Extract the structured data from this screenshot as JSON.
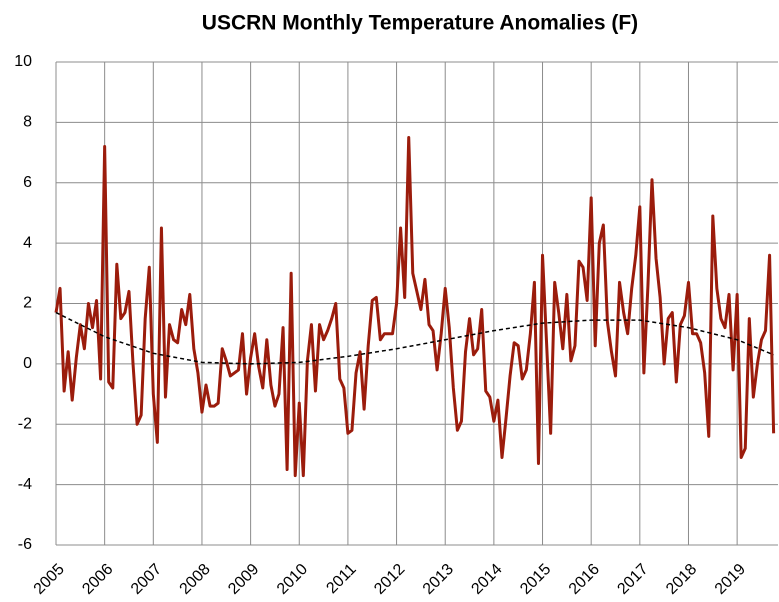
{
  "chart_data": {
    "type": "line",
    "title": "USCRN Monthly Temperature Anomalies (F)",
    "xlim": [
      2005,
      2019.84
    ],
    "xticks": [
      2005,
      2006,
      2007,
      2008,
      2009,
      2010,
      2011,
      2012,
      2013,
      2014,
      2015,
      2016,
      2017,
      2018,
      2019
    ],
    "ylim": [
      -6,
      10
    ],
    "yticks": [
      -6,
      -4,
      -2,
      0,
      2,
      4,
      6,
      8,
      10
    ],
    "grid": true,
    "series": [
      {
        "color": "#9b1c0c",
        "dash": false,
        "x": [
          2005,
          2005.083,
          2005.167,
          2005.25,
          2005.333,
          2005.417,
          2005.5,
          2005.583,
          2005.667,
          2005.75,
          2005.833,
          2005.917,
          2006,
          2006.083,
          2006.167,
          2006.25,
          2006.333,
          2006.417,
          2006.5,
          2006.583,
          2006.667,
          2006.75,
          2006.833,
          2006.917,
          2007,
          2007.083,
          2007.167,
          2007.25,
          2007.333,
          2007.417,
          2007.5,
          2007.583,
          2007.667,
          2007.75,
          2007.833,
          2007.917,
          2008,
          2008.083,
          2008.167,
          2008.25,
          2008.333,
          2008.417,
          2008.5,
          2008.583,
          2008.667,
          2008.75,
          2008.833,
          2008.917,
          2009,
          2009.083,
          2009.167,
          2009.25,
          2009.333,
          2009.417,
          2009.5,
          2009.583,
          2009.667,
          2009.75,
          2009.833,
          2009.917,
          2010,
          2010.083,
          2010.167,
          2010.25,
          2010.333,
          2010.417,
          2010.5,
          2010.583,
          2010.667,
          2010.75,
          2010.833,
          2010.917,
          2011,
          2011.083,
          2011.167,
          2011.25,
          2011.333,
          2011.417,
          2011.5,
          2011.583,
          2011.667,
          2011.75,
          2011.833,
          2011.917,
          2012,
          2012.083,
          2012.167,
          2012.25,
          2012.333,
          2012.417,
          2012.5,
          2012.583,
          2012.667,
          2012.75,
          2012.833,
          2012.917,
          2013,
          2013.083,
          2013.167,
          2013.25,
          2013.333,
          2013.417,
          2013.5,
          2013.583,
          2013.667,
          2013.75,
          2013.833,
          2013.917,
          2014,
          2014.083,
          2014.167,
          2014.25,
          2014.333,
          2014.417,
          2014.5,
          2014.583,
          2014.667,
          2014.75,
          2014.833,
          2014.917,
          2015,
          2015.083,
          2015.167,
          2015.25,
          2015.333,
          2015.417,
          2015.5,
          2015.583,
          2015.667,
          2015.75,
          2015.833,
          2015.917,
          2016,
          2016.083,
          2016.167,
          2016.25,
          2016.333,
          2016.417,
          2016.5,
          2016.583,
          2016.667,
          2016.75,
          2016.833,
          2016.917,
          2017,
          2017.083,
          2017.167,
          2017.25,
          2017.333,
          2017.417,
          2017.5,
          2017.583,
          2017.667,
          2017.75,
          2017.833,
          2017.917,
          2018,
          2018.083,
          2018.167,
          2018.25,
          2018.333,
          2018.417,
          2018.5,
          2018.583,
          2018.667,
          2018.75,
          2018.833,
          2018.917,
          2019,
          2019.083,
          2019.167,
          2019.25,
          2019.333,
          2019.417,
          2019.5,
          2019.583,
          2019.667,
          2019.75
        ],
        "values": [
          1.7,
          2.5,
          -0.9,
          0.4,
          -1.2,
          0.2,
          1.3,
          0.5,
          2.0,
          1.2,
          2.1,
          -0.5,
          7.2,
          -0.6,
          -0.8,
          3.3,
          1.5,
          1.7,
          2.4,
          0.0,
          -2.0,
          -1.7,
          1.5,
          3.2,
          -1.0,
          -2.6,
          4.5,
          -1.1,
          1.3,
          0.8,
          0.7,
          1.8,
          1.3,
          2.3,
          0.5,
          -0.3,
          -1.6,
          -0.7,
          -1.4,
          -1.4,
          -1.3,
          0.5,
          0.1,
          -0.4,
          -0.3,
          -0.2,
          1.0,
          -1.0,
          0.2,
          1.0,
          -0.1,
          -0.8,
          0.8,
          -0.7,
          -1.4,
          -1.0,
          1.2,
          -3.5,
          3.0,
          -3.7,
          -1.3,
          -3.7,
          0.1,
          1.3,
          -0.9,
          1.3,
          0.8,
          1.1,
          1.5,
          2.0,
          -0.5,
          -0.8,
          -2.3,
          -2.2,
          -0.3,
          0.4,
          -1.5,
          0.6,
          2.1,
          2.2,
          0.8,
          1.0,
          1.0,
          1.0,
          2.0,
          4.5,
          2.2,
          7.5,
          3.0,
          2.4,
          1.8,
          2.8,
          1.3,
          1.1,
          -0.2,
          1.0,
          2.5,
          1.2,
          -0.8,
          -2.2,
          -1.9,
          0.4,
          1.5,
          0.3,
          0.5,
          1.8,
          -0.9,
          -1.1,
          -1.9,
          -1.2,
          -3.1,
          -1.8,
          -0.4,
          0.7,
          0.6,
          -0.5,
          -0.2,
          1.0,
          2.7,
          -3.3,
          3.6,
          0.7,
          -2.3,
          2.7,
          1.7,
          0.5,
          2.3,
          0.1,
          0.6,
          3.4,
          3.2,
          2.1,
          5.5,
          0.6,
          4.0,
          4.6,
          1.4,
          0.4,
          -0.4,
          2.7,
          1.7,
          1.0,
          2.5,
          3.6,
          5.2,
          -0.3,
          2.6,
          6.1,
          3.5,
          2.2,
          0.0,
          1.5,
          1.7,
          -0.6,
          1.3,
          1.6,
          2.7,
          1.0,
          1.0,
          0.7,
          -0.3,
          -2.4,
          4.9,
          2.5,
          1.5,
          1.2,
          2.3,
          -0.2,
          2.3,
          -3.1,
          -2.8,
          1.5,
          -1.1,
          0.0,
          0.8,
          1.1,
          3.6,
          -2.3
        ]
      },
      {
        "color": "#000000",
        "dash": true,
        "x": [
          2005,
          2006,
          2007,
          2008,
          2009,
          2010,
          2011,
          2012,
          2013,
          2014,
          2015,
          2016,
          2017,
          2018,
          2019,
          2019.75
        ],
        "values": [
          1.7,
          0.9,
          0.35,
          0.05,
          0.0,
          0.05,
          0.25,
          0.5,
          0.8,
          1.1,
          1.35,
          1.45,
          1.45,
          1.2,
          0.8,
          0.3
        ]
      }
    ]
  }
}
